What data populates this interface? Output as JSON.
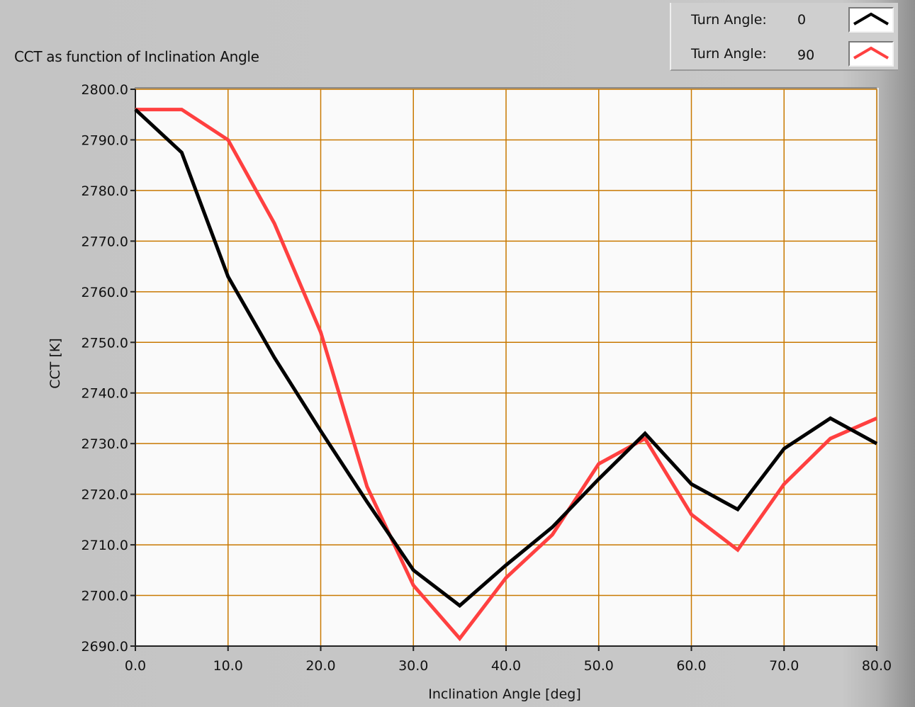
{
  "chart_data": {
    "type": "line",
    "title": "CCT as function of Inclination Angle",
    "xlabel": "Inclination Angle [deg]",
    "ylabel": "CCT [K]",
    "xlim": [
      0,
      80
    ],
    "ylim": [
      2690,
      2800
    ],
    "xticks": [
      "0.0",
      "10.0",
      "20.0",
      "30.0",
      "40.0",
      "50.0",
      "60.0",
      "70.0",
      "80.0"
    ],
    "yticks": [
      "2690.0",
      "2700.0",
      "2710.0",
      "2720.0",
      "2730.0",
      "2740.0",
      "2750.0",
      "2760.0",
      "2770.0",
      "2780.0",
      "2790.0",
      "2800.0"
    ],
    "grid": true,
    "grid_color": "#c87800",
    "plot_background": "#fafafa",
    "legend_position": "top-right",
    "x": [
      0,
      5,
      10,
      15,
      20,
      25,
      30,
      35,
      40,
      45,
      50,
      55,
      60,
      65,
      70,
      75,
      80
    ],
    "series": [
      {
        "name": "Turn Angle:",
        "legend_value": "0",
        "color": "#000000",
        "values": [
          2796,
          2787.5,
          2763,
          2747,
          2732.5,
          2718.5,
          2705,
          2698,
          2706,
          2713.5,
          2723,
          2732,
          2722,
          2717,
          2729,
          2735,
          2730
        ]
      },
      {
        "name": "Turn Angle:",
        "legend_value": "90",
        "color": "#ff4040",
        "values": [
          2796,
          2796,
          2790,
          2773.5,
          2752,
          2721.5,
          2702,
          2691.5,
          2703.5,
          2712,
          2726,
          2731,
          2716,
          2709,
          2722,
          2731,
          2735
        ]
      }
    ]
  }
}
